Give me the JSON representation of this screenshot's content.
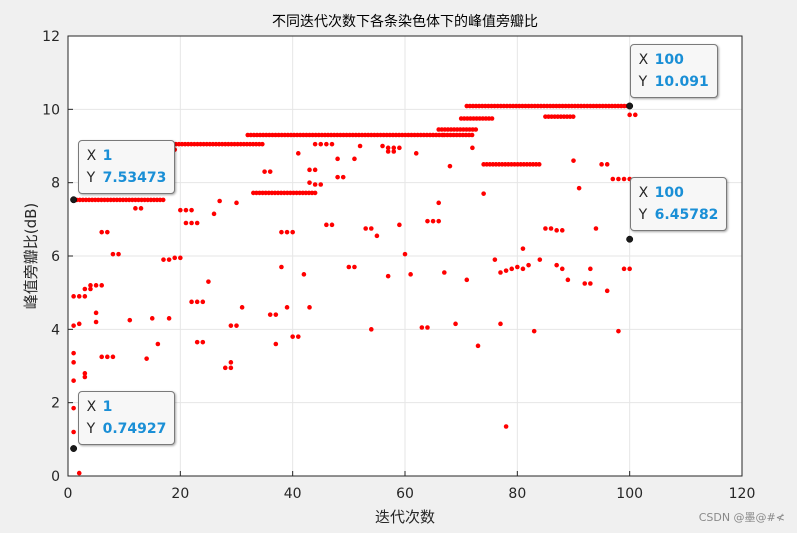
{
  "watermark": "CSDN @墨@#≮",
  "chart_data": {
    "type": "scatter",
    "title": "不同迭代次数下各条染色体下的峰值旁瓣比",
    "xlabel": "迭代次数",
    "ylabel": "峰值旁瓣比(dB)",
    "xlim": [
      0,
      120
    ],
    "ylim": [
      0,
      12
    ],
    "xticks": [
      0,
      20,
      40,
      60,
      80,
      100,
      120
    ],
    "yticks": [
      0,
      2,
      4,
      6,
      8,
      10,
      12
    ],
    "grid": true,
    "colors": {
      "points": "#ff0000",
      "highlight": "#1a1a1a",
      "tip_value": "#1a8fd6"
    },
    "datatips": [
      {
        "x": 1,
        "y": 7.53473,
        "xlabel": "X",
        "ylabel": "Y",
        "xtext": "1",
        "ytext": "7.53473"
      },
      {
        "x": 1,
        "y": 0.74927,
        "xlabel": "X",
        "ylabel": "Y",
        "xtext": "1",
        "ytext": "0.74927"
      },
      {
        "x": 100,
        "y": 10.091,
        "xlabel": "X",
        "ylabel": "Y",
        "xtext": "100",
        "ytext": "10.091"
      },
      {
        "x": 100,
        "y": 6.45782,
        "xlabel": "X",
        "ylabel": "Y",
        "xtext": "100",
        "ytext": "6.45782"
      }
    ],
    "bands": [
      {
        "y": 7.53,
        "x_from": 1,
        "x_to": 17
      },
      {
        "y": 9.05,
        "x_from": 17,
        "x_to": 35
      },
      {
        "y": 9.3,
        "x_from": 32,
        "x_to": 67
      },
      {
        "y": 9.3,
        "x_from": 67,
        "x_to": 72
      },
      {
        "y": 9.45,
        "x_from": 66,
        "x_to": 73
      },
      {
        "y": 9.75,
        "x_from": 70,
        "x_to": 76
      },
      {
        "y": 10.09,
        "x_from": 71,
        "x_to": 100
      },
      {
        "y": 7.72,
        "x_from": 33,
        "x_to": 44
      },
      {
        "y": 8.5,
        "x_from": 74,
        "x_to": 84
      },
      {
        "y": 9.8,
        "x_from": 85,
        "x_to": 90
      }
    ],
    "points": [
      [
        1,
        0.75
      ],
      [
        1,
        1.2
      ],
      [
        1,
        1.85
      ],
      [
        1,
        2.6
      ],
      [
        1,
        3.1
      ],
      [
        1,
        3.35
      ],
      [
        1,
        4.1
      ],
      [
        1,
        4.9
      ],
      [
        2,
        0.08
      ],
      [
        2,
        4.15
      ],
      [
        2,
        4.9
      ],
      [
        3,
        2.7
      ],
      [
        3,
        2.8
      ],
      [
        3,
        5.1
      ],
      [
        3,
        4.9
      ],
      [
        4,
        5.1
      ],
      [
        4,
        5.2
      ],
      [
        5,
        4.2
      ],
      [
        5,
        4.45
      ],
      [
        5,
        5.2
      ],
      [
        6,
        5.2
      ],
      [
        6,
        3.25
      ],
      [
        6,
        6.65
      ],
      [
        7,
        6.65
      ],
      [
        7,
        3.25
      ],
      [
        8,
        3.25
      ],
      [
        8,
        6.05
      ],
      [
        9,
        6.05
      ],
      [
        11,
        4.25
      ],
      [
        12,
        7.3
      ],
      [
        13,
        7.3
      ],
      [
        14,
        3.2
      ],
      [
        15,
        4.3
      ],
      [
        16,
        3.6
      ],
      [
        17,
        5.9
      ],
      [
        18,
        5.9
      ],
      [
        18,
        4.3
      ],
      [
        19,
        5.95
      ],
      [
        19,
        8.9
      ],
      [
        20,
        5.95
      ],
      [
        20,
        7.25
      ],
      [
        21,
        6.9
      ],
      [
        21,
        7.25
      ],
      [
        22,
        6.9
      ],
      [
        22,
        4.75
      ],
      [
        22,
        7.25
      ],
      [
        23,
        3.65
      ],
      [
        23,
        4.75
      ],
      [
        23,
        6.9
      ],
      [
        24,
        3.65
      ],
      [
        24,
        4.75
      ],
      [
        25,
        5.3
      ],
      [
        26,
        7.15
      ],
      [
        27,
        7.5
      ],
      [
        28,
        2.95
      ],
      [
        29,
        2.95
      ],
      [
        29,
        3.1
      ],
      [
        29,
        4.1
      ],
      [
        30,
        4.1
      ],
      [
        30,
        7.45
      ],
      [
        31,
        4.6
      ],
      [
        35,
        8.3
      ],
      [
        36,
        8.3
      ],
      [
        36,
        4.4
      ],
      [
        37,
        4.4
      ],
      [
        37,
        3.6
      ],
      [
        38,
        5.7
      ],
      [
        38,
        6.65
      ],
      [
        39,
        6.65
      ],
      [
        39,
        4.6
      ],
      [
        40,
        3.8
      ],
      [
        40,
        6.65
      ],
      [
        41,
        3.8
      ],
      [
        41,
        8.8
      ],
      [
        42,
        5.5
      ],
      [
        43,
        4.6
      ],
      [
        43,
        8.0
      ],
      [
        43,
        8.35
      ],
      [
        44,
        7.95
      ],
      [
        44,
        8.35
      ],
      [
        44,
        9.05
      ],
      [
        45,
        7.95
      ],
      [
        45,
        9.05
      ],
      [
        46,
        6.85
      ],
      [
        46,
        9.05
      ],
      [
        47,
        6.85
      ],
      [
        47,
        9.05
      ],
      [
        48,
        8.15
      ],
      [
        48,
        8.65
      ],
      [
        49,
        8.15
      ],
      [
        50,
        5.7
      ],
      [
        51,
        5.7
      ],
      [
        51,
        8.65
      ],
      [
        52,
        9.0
      ],
      [
        53,
        6.75
      ],
      [
        54,
        6.75
      ],
      [
        54,
        4.0
      ],
      [
        55,
        6.55
      ],
      [
        56,
        9.0
      ],
      [
        57,
        5.45
      ],
      [
        57,
        8.95
      ],
      [
        57,
        8.85
      ],
      [
        58,
        8.95
      ],
      [
        58,
        8.85
      ],
      [
        59,
        6.85
      ],
      [
        59,
        8.95
      ],
      [
        60,
        6.05
      ],
      [
        61,
        5.5
      ],
      [
        62,
        8.8
      ],
      [
        63,
        4.05
      ],
      [
        64,
        4.05
      ],
      [
        64,
        6.95
      ],
      [
        65,
        6.95
      ],
      [
        66,
        6.95
      ],
      [
        66,
        7.45
      ],
      [
        67,
        5.55
      ],
      [
        68,
        8.45
      ],
      [
        69,
        4.15
      ],
      [
        71,
        5.35
      ],
      [
        72,
        8.95
      ],
      [
        73,
        3.55
      ],
      [
        74,
        7.7
      ],
      [
        76,
        5.9
      ],
      [
        77,
        4.15
      ],
      [
        77,
        5.55
      ],
      [
        78,
        1.35
      ],
      [
        78,
        5.6
      ],
      [
        79,
        5.65
      ],
      [
        80,
        5.7
      ],
      [
        81,
        5.65
      ],
      [
        81,
        6.2
      ],
      [
        82,
        5.75
      ],
      [
        83,
        3.95
      ],
      [
        84,
        5.9
      ],
      [
        85,
        6.75
      ],
      [
        86,
        6.75
      ],
      [
        87,
        5.75
      ],
      [
        87,
        6.7
      ],
      [
        88,
        5.65
      ],
      [
        88,
        6.7
      ],
      [
        89,
        5.35
      ],
      [
        90,
        8.6
      ],
      [
        91,
        7.85
      ],
      [
        92,
        5.25
      ],
      [
        93,
        5.25
      ],
      [
        93,
        5.65
      ],
      [
        94,
        6.75
      ],
      [
        95,
        8.5
      ],
      [
        96,
        5.05
      ],
      [
        96,
        8.5
      ],
      [
        97,
        8.1
      ],
      [
        98,
        3.95
      ],
      [
        98,
        8.1
      ],
      [
        99,
        5.65
      ],
      [
        99,
        8.1
      ],
      [
        100,
        5.65
      ],
      [
        100,
        8.1
      ],
      [
        100,
        9.85
      ],
      [
        101,
        9.85
      ]
    ]
  }
}
